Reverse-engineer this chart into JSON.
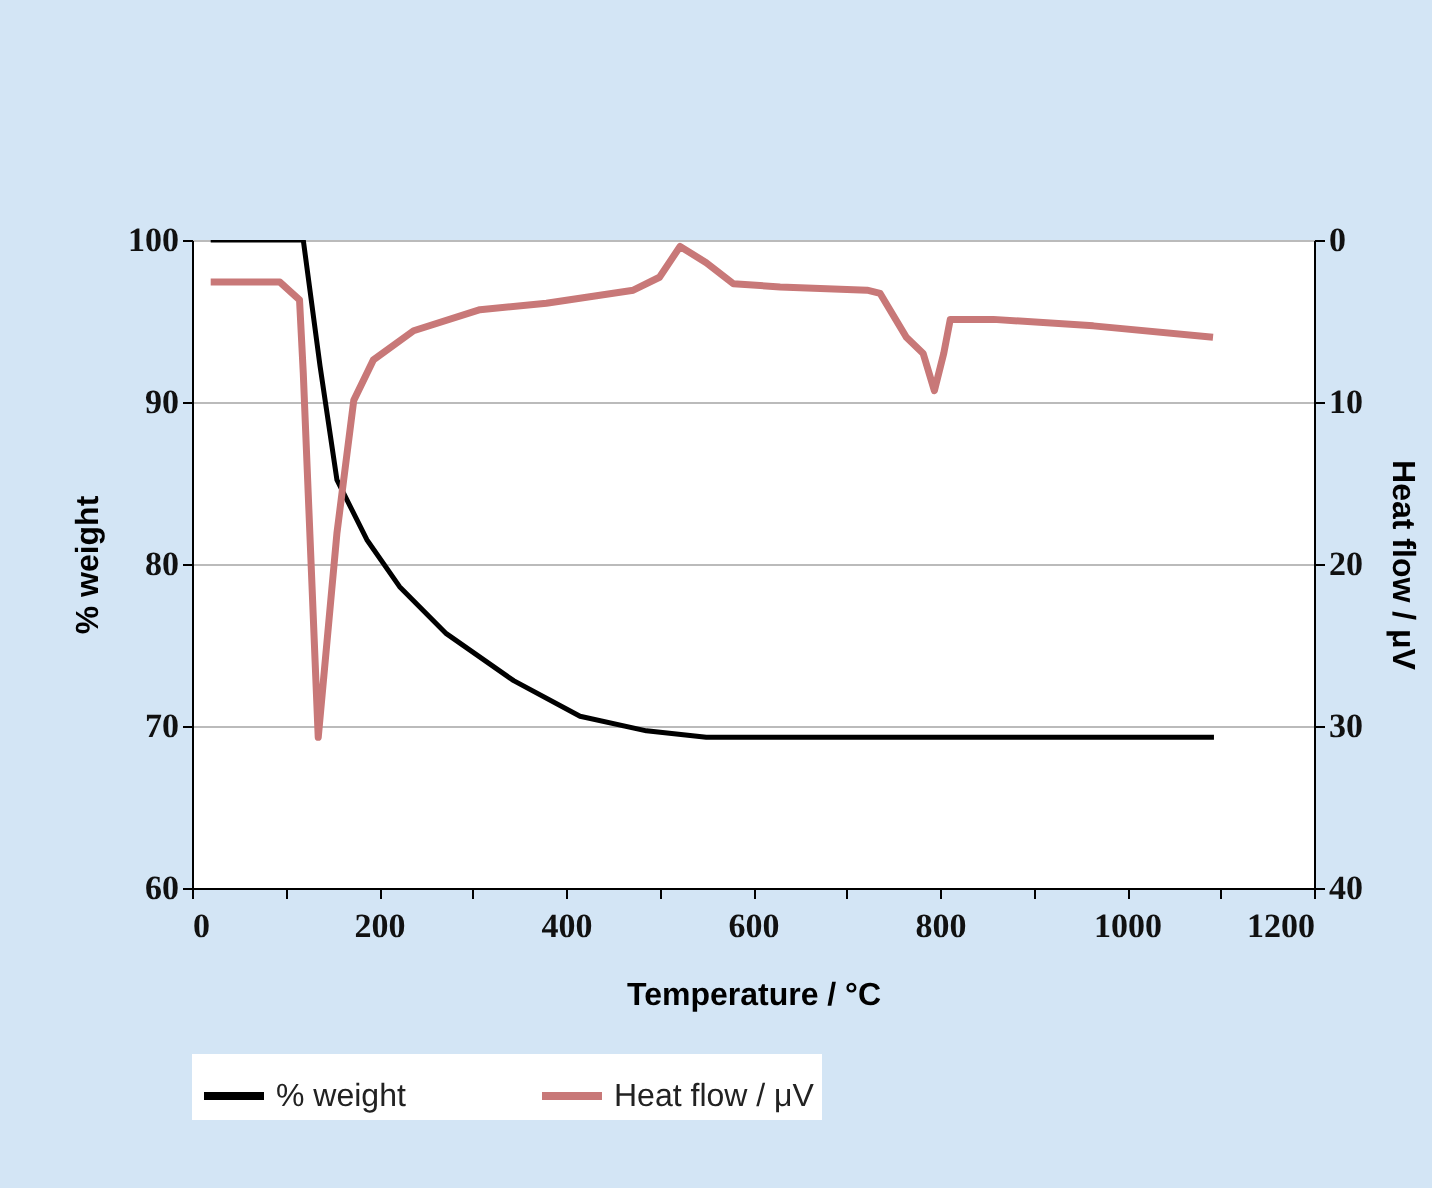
{
  "chart_data": {
    "type": "line",
    "xlabel": "Temperature / °C",
    "ylabel": "% weight",
    "y2label": "Heat flow / μV",
    "xlim": [
      0,
      1200
    ],
    "xticks": [
      0,
      {
        "value": 100,
        "label": null
      },
      200,
      {
        "value": 300,
        "label": null
      },
      400,
      {
        "value": 500,
        "label": null
      },
      600,
      {
        "value": 700,
        "label": null
      },
      800,
      {
        "value": 900,
        "label": null
      },
      1000,
      {
        "value": 1100,
        "label": null
      },
      1200
    ],
    "ylim": [
      60,
      100
    ],
    "yticks": [
      60,
      70,
      80,
      90,
      100
    ],
    "y2lim": [
      40,
      0
    ],
    "y2ticks": [
      0,
      10,
      20,
      30,
      40
    ],
    "grid": "y",
    "legend": "bottom",
    "line_style": "solid",
    "marker": "none",
    "series": [
      {
        "name": "% weight",
        "color": "#000000",
        "x": [
          20,
          119,
          137,
          155,
          187,
          222,
          272,
          344,
          415,
          486,
          550,
          600,
          800,
          1093
        ],
        "values": [
          100,
          100,
          92.2,
          85.2,
          81.5,
          78.6,
          75.7,
          72.8,
          70.6,
          69.7,
          69.3,
          69.3,
          69.3,
          69.3
        ]
      },
      {
        "name": "Heat flow / μV",
        "color": "#c87878",
        "axis": "y2",
        "x": [
          20,
          94,
          115,
          119,
          135,
          155,
          173,
          194,
          237,
          308,
          379,
          472,
          500,
          522,
          550,
          579,
          629,
          722,
          736,
          764,
          782,
          794,
          804,
          811,
          857,
          964,
          1092
        ],
        "values": [
          2.6,
          2.6,
          3.7,
          8.2,
          30.7,
          18.1,
          9.9,
          7.4,
          5.6,
          4.3,
          3.9,
          3.1,
          2.3,
          0.4,
          1.4,
          2.7,
          2.9,
          3.1,
          3.3,
          6.0,
          7.0,
          9.3,
          7.0,
          4.9,
          4.9,
          5.3,
          6.0
        ]
      }
    ]
  }
}
